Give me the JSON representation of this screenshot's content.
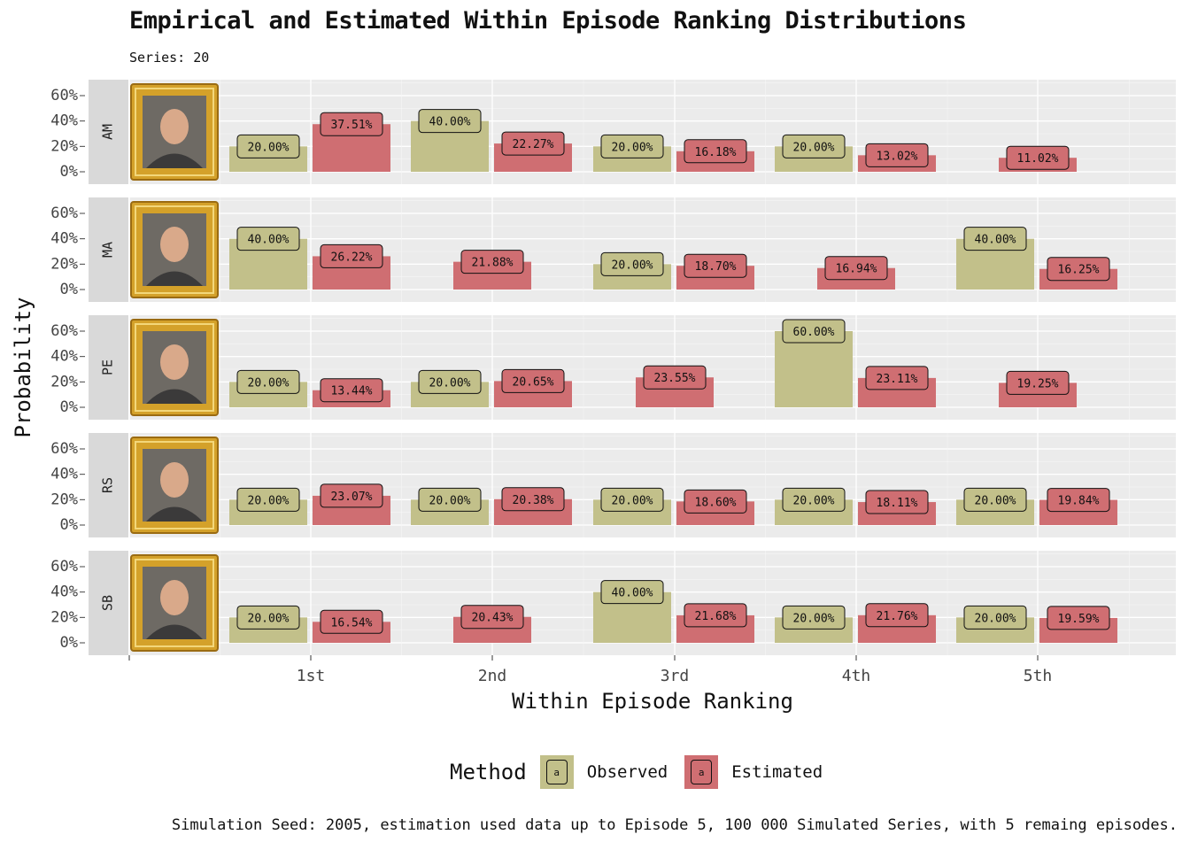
{
  "title": "Empirical and Estimated Within Episode Ranking Distributions",
  "subtitle": "Series: 20",
  "caption": "Simulation Seed: 2005, estimation used data up to Episode 5, 100 000 Simulated Series, with 5 remaing episodes.",
  "legend": {
    "title": "Method",
    "key_glyph": "a",
    "items": [
      {
        "label": "Observed",
        "color": "#c2c08a"
      },
      {
        "label": "Estimated",
        "color": "#cf6e72"
      }
    ]
  },
  "colors": {
    "observed": "#c2c08a",
    "estimated": "#cf6e72",
    "panel_bg": "#ebebeb",
    "strip_bg": "#d9d9d9",
    "frame": "#d4a12a"
  },
  "chart_data": {
    "type": "bar",
    "facet_by": "contestant",
    "xlabel": "Within Episode Ranking",
    "ylabel": "Probability",
    "categories": [
      "1st",
      "2nd",
      "3rd",
      "4th",
      "5th"
    ],
    "yticks": [
      "0%",
      "20%",
      "40%",
      "60%"
    ],
    "ylim": [
      0,
      0.7
    ],
    "grid": true,
    "legend_position": "bottom",
    "facets": [
      {
        "label": "AM",
        "portrait_icon": "portrait-icon",
        "observed": [
          0.2,
          0.4,
          0.2,
          0.2,
          null
        ],
        "estimated": [
          0.3751,
          0.2227,
          0.1618,
          0.1302,
          0.1102
        ],
        "observed_labels": [
          "20.00%",
          "40.00%",
          "20.00%",
          "20.00%",
          ""
        ],
        "estimated_labels": [
          "37.51%",
          "22.27%",
          "16.18%",
          "13.02%",
          "11.02%"
        ]
      },
      {
        "label": "MA",
        "portrait_icon": "portrait-icon",
        "observed": [
          0.4,
          null,
          0.2,
          null,
          0.4
        ],
        "estimated": [
          0.2622,
          0.2188,
          0.187,
          0.1694,
          0.1625
        ],
        "observed_labels": [
          "40.00%",
          "",
          "20.00%",
          "",
          "40.00%"
        ],
        "estimated_labels": [
          "26.22%",
          "21.88%",
          "18.70%",
          "16.94%",
          "16.25%"
        ]
      },
      {
        "label": "PE",
        "portrait_icon": "portrait-icon",
        "observed": [
          0.2,
          0.2,
          null,
          0.6,
          null
        ],
        "estimated": [
          0.1344,
          0.2065,
          0.2355,
          0.2311,
          0.1925
        ],
        "observed_labels": [
          "20.00%",
          "20.00%",
          "",
          "60.00%",
          ""
        ],
        "estimated_labels": [
          "13.44%",
          "20.65%",
          "23.55%",
          "23.11%",
          "19.25%"
        ]
      },
      {
        "label": "RS",
        "portrait_icon": "portrait-icon",
        "observed": [
          0.2,
          0.2,
          0.2,
          0.2,
          0.2
        ],
        "estimated": [
          0.2307,
          0.2038,
          0.186,
          0.1811,
          0.1984
        ],
        "observed_labels": [
          "20.00%",
          "20.00%",
          "20.00%",
          "20.00%",
          "20.00%"
        ],
        "estimated_labels": [
          "23.07%",
          "20.38%",
          "18.60%",
          "18.11%",
          "19.84%"
        ]
      },
      {
        "label": "SB",
        "portrait_icon": "portrait-icon",
        "observed": [
          0.2,
          null,
          0.4,
          0.2,
          0.2
        ],
        "estimated": [
          0.1654,
          0.2043,
          0.2168,
          0.2176,
          0.1959
        ],
        "observed_labels": [
          "20.00%",
          "",
          "40.00%",
          "20.00%",
          "20.00%"
        ],
        "estimated_labels": [
          "16.54%",
          "20.43%",
          "21.68%",
          "21.76%",
          "19.59%"
        ]
      }
    ]
  }
}
